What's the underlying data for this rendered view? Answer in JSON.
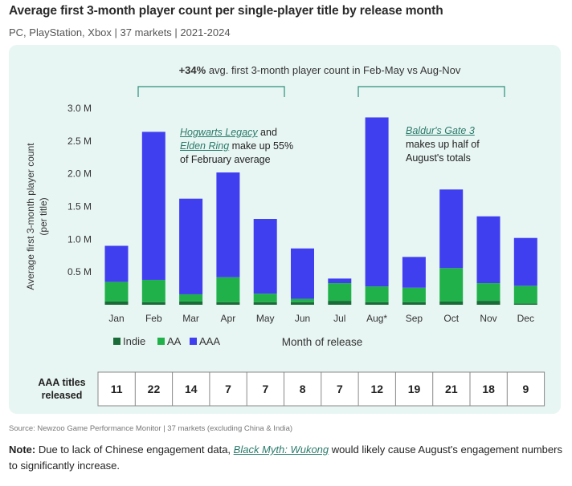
{
  "title": "Average first 3-month player count per single-player title by release month",
  "subtitle": "PC, PlayStation, Xbox | 37 markets | 2021-2024",
  "callout": {
    "bold": "+34%",
    "text": " avg. first 3-month player count in Feb-May vs Aug-Nov"
  },
  "annotations": {
    "feb": {
      "link1": "Hogwarts Legacy",
      "and": " and",
      "link2": "Elden Ring",
      "rest1": " make up 55%",
      "rest2": "of February average"
    },
    "aug": {
      "link": "Baldur's Gate 3",
      "rest1": "makes up half of",
      "rest2": "August's totals"
    }
  },
  "chart_data": {
    "type": "bar",
    "stacked": true,
    "categories": [
      "Jan",
      "Feb",
      "Mar",
      "Apr",
      "May",
      "Jun",
      "Jul",
      "Aug*",
      "Sep",
      "Oct",
      "Nov",
      "Dec"
    ],
    "series": [
      {
        "name": "Indie",
        "color": "#1a6b37",
        "values": [
          0.05,
          0.04,
          0.05,
          0.04,
          0.04,
          0.04,
          0.06,
          0.04,
          0.04,
          0.05,
          0.06,
          0.02
        ]
      },
      {
        "name": "AA",
        "color": "#20b14a",
        "values": [
          0.3,
          0.34,
          0.11,
          0.38,
          0.13,
          0.05,
          0.27,
          0.24,
          0.22,
          0.51,
          0.27,
          0.27
        ]
      },
      {
        "name": "AAA",
        "color": "#3f3ff0",
        "values": [
          0.55,
          2.26,
          1.46,
          1.6,
          1.14,
          0.77,
          0.07,
          2.58,
          0.47,
          1.2,
          1.02,
          0.73
        ]
      }
    ],
    "ylabel": "Average first 3-month player count (per title)",
    "xlabel": "Month of release",
    "yticks": [
      "0.5 M",
      "1.0 M",
      "1.5 M",
      "2.0 M",
      "2.5 M",
      "3.0 M"
    ],
    "ylim": [
      0,
      3.0
    ],
    "grid": false,
    "legend": "bottom-left"
  },
  "table": {
    "label_line1": "AAA titles",
    "label_line2": "released",
    "values": [
      "11",
      "22",
      "14",
      "7",
      "7",
      "8",
      "7",
      "12",
      "19",
      "21",
      "18",
      "9"
    ]
  },
  "source": "Source: Newzoo Game Performance Monitor | 37 markets (excluding China & India)",
  "note": {
    "bold": "Note:",
    "text1": " Due to lack of Chinese engagement data, ",
    "link": "Black Myth: Wukong",
    "text2": " would likely cause August's engagement numbers to significantly increase."
  }
}
